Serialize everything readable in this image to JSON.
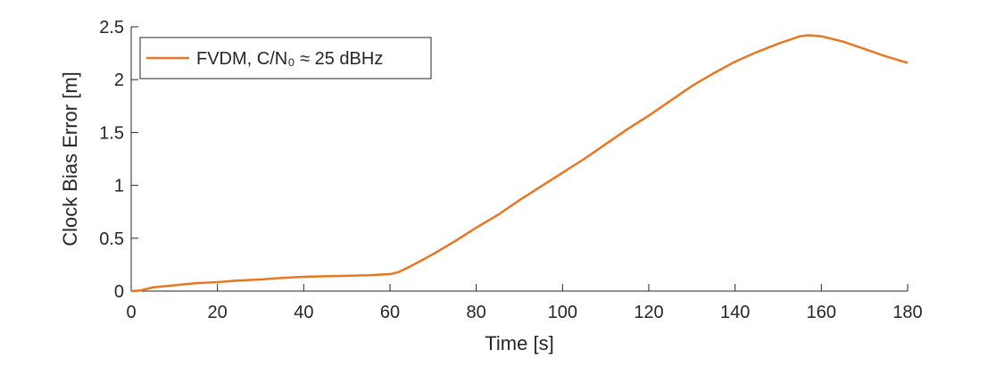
{
  "chart_data": {
    "type": "line",
    "xlabel": "Time [s]",
    "ylabel": "Clock Bias Error [m]",
    "x": [
      0,
      2,
      5,
      10,
      15,
      20,
      25,
      30,
      35,
      40,
      45,
      50,
      55,
      60,
      62,
      65,
      70,
      75,
      80,
      85,
      90,
      95,
      100,
      105,
      110,
      115,
      120,
      125,
      130,
      135,
      140,
      145,
      150,
      155,
      157,
      160,
      165,
      170,
      175,
      180
    ],
    "series": [
      {
        "name": "FVDM, C/N₀ ≈ 25 dBHz",
        "color": "#e87722",
        "values": [
          0,
          0.005,
          0.035,
          0.055,
          0.075,
          0.085,
          0.1,
          0.11,
          0.125,
          0.135,
          0.14,
          0.145,
          0.15,
          0.16,
          0.18,
          0.24,
          0.35,
          0.47,
          0.6,
          0.72,
          0.86,
          0.99,
          1.12,
          1.25,
          1.39,
          1.53,
          1.66,
          1.8,
          1.94,
          2.06,
          2.17,
          2.26,
          2.34,
          2.41,
          2.42,
          2.41,
          2.36,
          2.29,
          2.22,
          2.16
        ]
      }
    ],
    "xlim": [
      0,
      180
    ],
    "xticks": [
      0,
      20,
      40,
      60,
      80,
      100,
      120,
      140,
      160,
      180
    ],
    "ylim": [
      0,
      2.5
    ],
    "yticks": [
      0,
      0.5,
      1,
      1.5,
      2,
      2.5
    ],
    "legend": "upper left"
  }
}
